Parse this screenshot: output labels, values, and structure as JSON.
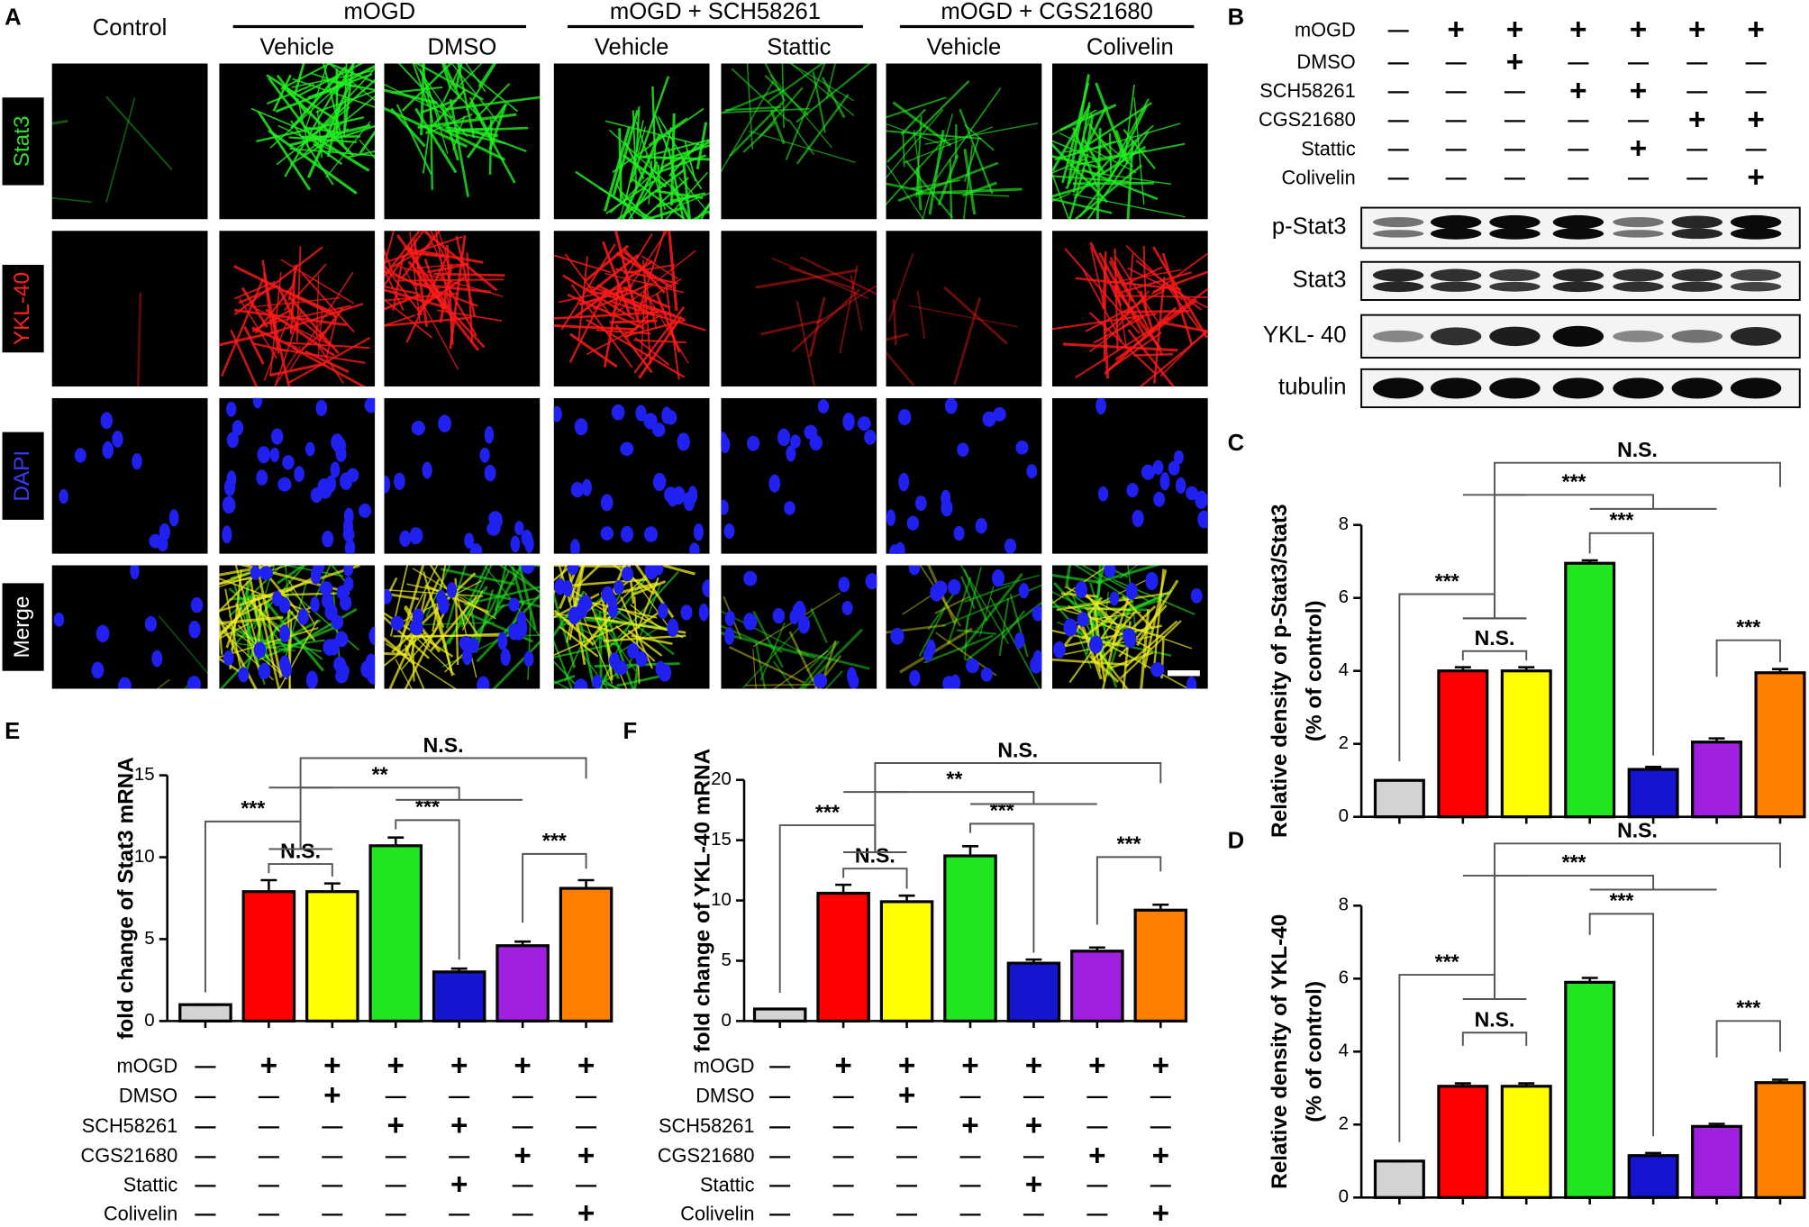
{
  "panel_a": {
    "letter": "A",
    "groups": [
      {
        "title": "Control",
        "columns": []
      },
      {
        "title": "mOGD",
        "columns": [
          "Vehicle",
          "DMSO"
        ]
      },
      {
        "title": "mOGD + SCH58261",
        "columns": [
          "Vehicle",
          "Stattic"
        ]
      },
      {
        "title": "mOGD + CGS21680",
        "columns": [
          "Vehicle",
          "Colivelin"
        ]
      }
    ],
    "rows": [
      "Stat3",
      "YKL-40",
      "DAPI",
      "Merge"
    ]
  },
  "panel_b": {
    "letter": "B",
    "blots": [
      "p-Stat3",
      "Stat3",
      "YKL- 40",
      "tubulin"
    ]
  },
  "treatments": {
    "labels": [
      "mOGD",
      "DMSO",
      "SCH58261",
      "CGS21680",
      "Stattic",
      "Colivelin"
    ],
    "signs": [
      [
        "—",
        "+",
        "+",
        "+",
        "+",
        "+",
        "+"
      ],
      [
        "—",
        "—",
        "+",
        "—",
        "—",
        "—",
        "—"
      ],
      [
        "—",
        "—",
        "—",
        "+",
        "+",
        "—",
        "—"
      ],
      [
        "—",
        "—",
        "—",
        "—",
        "—",
        "+",
        "+"
      ],
      [
        "—",
        "—",
        "—",
        "—",
        "+",
        "—",
        "—"
      ],
      [
        "—",
        "—",
        "—",
        "—",
        "—",
        "—",
        "+"
      ]
    ]
  },
  "chart_data": [
    {
      "panel": "C",
      "type": "bar",
      "ylabel": [
        "Relative density of p-Stat3/Stat3",
        "(% of control)"
      ],
      "values": [
        1,
        4.0,
        4.0,
        6.95,
        1.3,
        2.05,
        3.95
      ],
      "errors": [
        0,
        0.1,
        0.1,
        0.08,
        0.07,
        0.1,
        0.1
      ],
      "colors": [
        "#d3d3d3",
        "#ff0000",
        "#ffff00",
        "#22e522",
        "#1515d0",
        "#a020e0",
        "#ff8000"
      ],
      "ylim": [
        0,
        8
      ],
      "yticks": [
        0,
        2,
        4,
        6,
        8
      ],
      "annotations": [
        "***",
        "N.S.",
        "***",
        "***",
        "N.S.",
        "***"
      ]
    },
    {
      "panel": "D",
      "type": "bar",
      "ylabel": [
        "Relative density of YKL-40",
        "(% of control)"
      ],
      "values": [
        1,
        3.05,
        3.05,
        5.9,
        1.15,
        1.95,
        3.15
      ],
      "errors": [
        0,
        0.08,
        0.08,
        0.12,
        0.07,
        0.07,
        0.08
      ],
      "colors": [
        "#d3d3d3",
        "#ff0000",
        "#ffff00",
        "#22e522",
        "#1515d0",
        "#a020e0",
        "#ff8000"
      ],
      "ylim": [
        0,
        8
      ],
      "yticks": [
        0,
        2,
        4,
        6,
        8
      ],
      "annotations": [
        "***",
        "N.S.",
        "***",
        "***",
        "N.S.",
        "***"
      ]
    },
    {
      "panel": "E",
      "type": "bar",
      "ylabel": [
        "fold change of Stat3 mRNA"
      ],
      "values": [
        1,
        7.9,
        7.9,
        10.7,
        3.0,
        4.6,
        8.1
      ],
      "errors": [
        0,
        0.7,
        0.5,
        0.5,
        0.2,
        0.25,
        0.5
      ],
      "colors": [
        "#d3d3d3",
        "#ff0000",
        "#ffff00",
        "#22e522",
        "#1515d0",
        "#a020e0",
        "#ff8000"
      ],
      "ylim": [
        0,
        15
      ],
      "yticks": [
        0,
        5,
        10,
        15
      ],
      "annotations": [
        "***",
        "N.S.",
        "***",
        "**",
        "N.S.",
        "***"
      ]
    },
    {
      "panel": "F",
      "type": "bar",
      "ylabel": [
        "fold change of YKL-40 mRNA"
      ],
      "values": [
        1,
        10.6,
        9.9,
        13.7,
        4.8,
        5.8,
        9.2
      ],
      "errors": [
        0,
        0.7,
        0.5,
        0.8,
        0.3,
        0.3,
        0.45
      ],
      "colors": [
        "#d3d3d3",
        "#ff0000",
        "#ffff00",
        "#22e522",
        "#1515d0",
        "#a020e0",
        "#ff8000"
      ],
      "ylim": [
        0,
        20
      ],
      "yticks": [
        0,
        5,
        10,
        15,
        20
      ],
      "annotations": [
        "***",
        "N.S.",
        "***",
        "**",
        "N.S.",
        "***"
      ]
    }
  ]
}
